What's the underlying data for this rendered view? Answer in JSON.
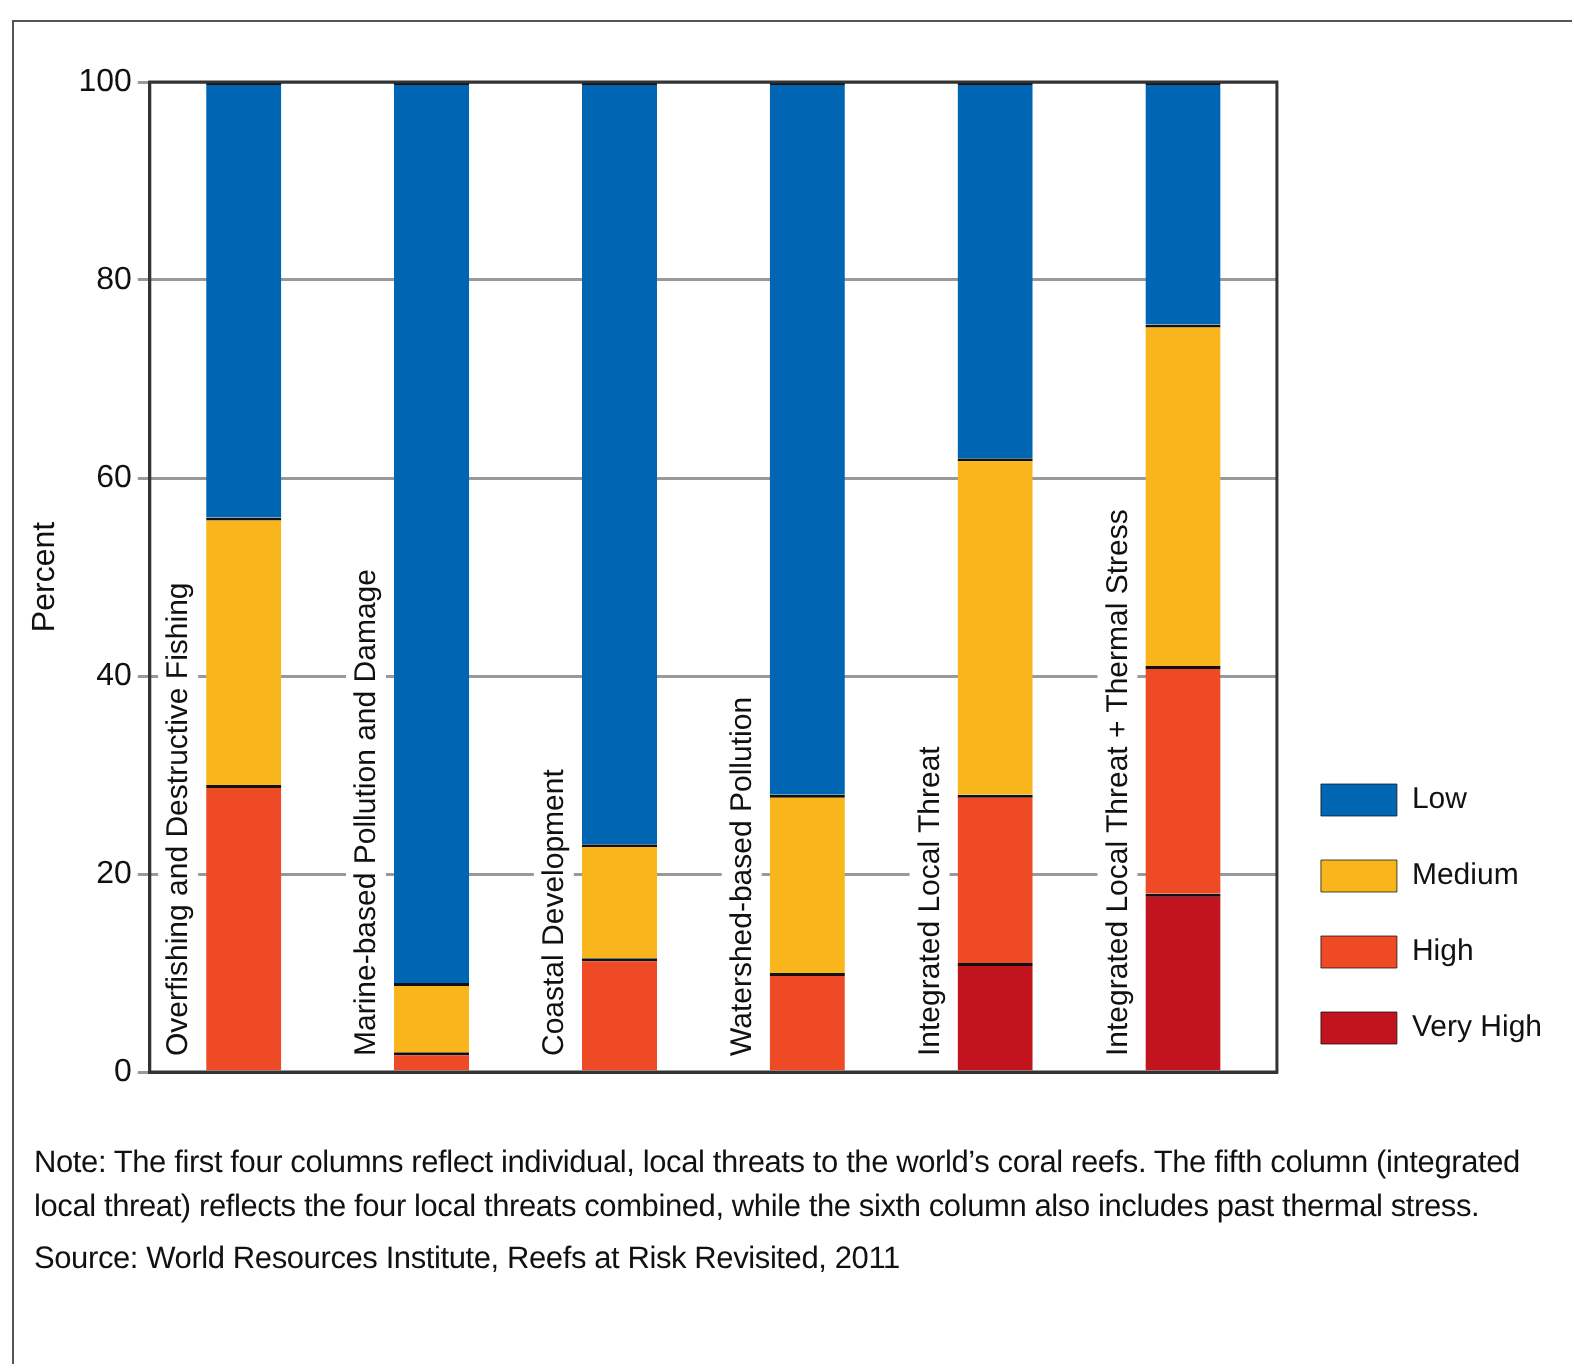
{
  "chart_data": {
    "type": "bar",
    "stacked": true,
    "ylabel": "Percent",
    "categories": [
      "Overfishing and Destructive Fishing",
      "Marine-based Pollution and Damage",
      "Coastal Development",
      "Watershed-based Pollution",
      "Integrated Local Threat",
      "Integrated Local Threat + Thermal Stress"
    ],
    "series": [
      {
        "name": "Very High",
        "color": "#c1141f",
        "values": [
          0,
          0,
          0,
          0,
          11,
          18
        ]
      },
      {
        "name": "High",
        "color": "#ee4a25",
        "values": [
          29,
          2,
          11.5,
          10,
          17,
          23
        ]
      },
      {
        "name": "Medium",
        "color": "#f9b51c",
        "values": [
          27,
          7,
          11.5,
          18,
          34,
          34.5
        ]
      },
      {
        "name": "Low",
        "color": "#0066b3",
        "values": [
          44,
          91,
          77,
          72,
          38,
          24.5
        ]
      }
    ],
    "ylim": [
      0,
      100
    ],
    "yticks": [
      0,
      20,
      40,
      60,
      80,
      100
    ],
    "grid": "y",
    "legend": "right",
    "tick_labels": "y",
    "annotations": [
      "Note: The first four columns reflect individual, local threats to the world’s coral reefs. The fifth column (integrated local threat) reflects the four local threats combined, while the sixth column also includes past thermal stress.",
      "Source: World Resources Institute, Reefs at Risk Revisited, 2011"
    ]
  }
}
